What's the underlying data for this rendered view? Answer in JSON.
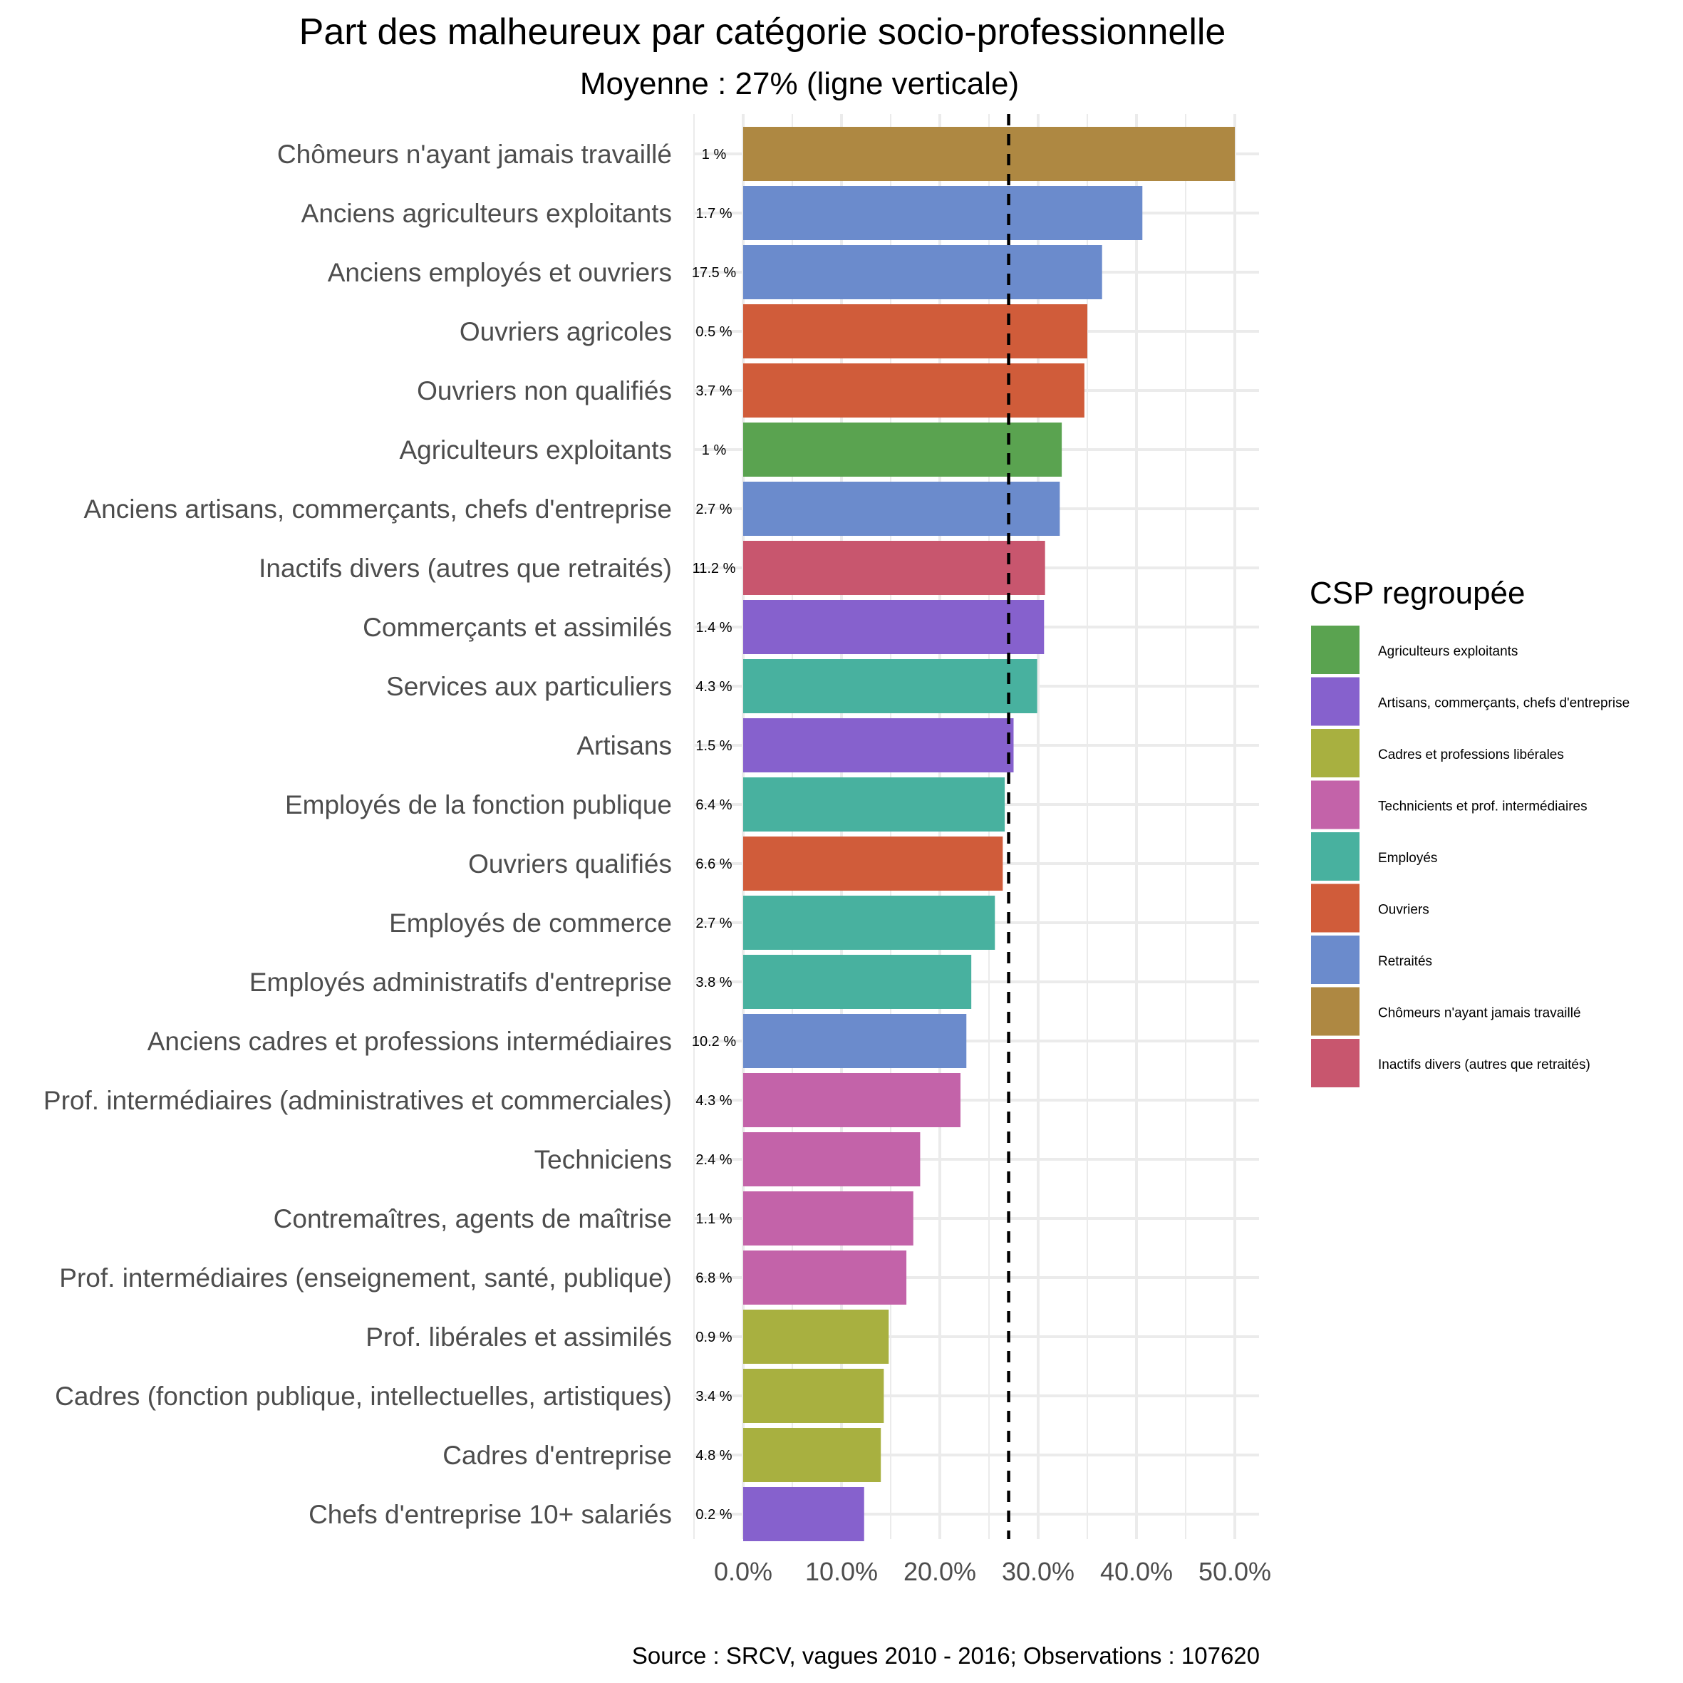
{
  "chart_data": {
    "type": "bar",
    "orientation": "horizontal",
    "title": "Part des malheureux par catégorie socio-professionnelle",
    "subtitle": "Moyenne : 27% (ligne verticale)",
    "caption": "Source : SRCV, vagues 2010 - 2016; Observations : 107620",
    "x_ticks": [
      "0.0%",
      "10.0%",
      "20.0%",
      "30.0%",
      "40.0%",
      "50.0%"
    ],
    "xlim": [
      0,
      50
    ],
    "mean": 27,
    "grid": true,
    "legend": {
      "title": "CSP regroupée",
      "position": "right",
      "items": [
        {
          "label": "Agriculteurs exploitants",
          "color": "#5aa350"
        },
        {
          "label": "Artisans, commerçants, chefs d'entreprise",
          "color": "#8661cd"
        },
        {
          "label": "Cadres et professions libérales",
          "color": "#a8b040"
        },
        {
          "label": "Technicients et prof. intermédiaires",
          "color": "#c363a9"
        },
        {
          "label": "Employés",
          "color": "#48b19f"
        },
        {
          "label": "Ouvriers",
          "color": "#d05c3a"
        },
        {
          "label": "Retraités",
          "color": "#6b8bcc"
        },
        {
          "label": "Chômeurs n'ayant jamais travaillé",
          "color": "#ae8842"
        },
        {
          "label": "Inactifs divers (autres que retraités)",
          "color": "#c8566e"
        }
      ]
    },
    "bars": [
      {
        "category": "Chômeurs n'ayant jamais travaillé",
        "value": 50.0,
        "share": "1 %",
        "group": 7
      },
      {
        "category": "Anciens agriculteurs exploitants",
        "value": 40.6,
        "share": "1.7 %",
        "group": 6
      },
      {
        "category": "Anciens employés et ouvriers",
        "value": 36.5,
        "share": "17.5 %",
        "group": 6
      },
      {
        "category": "Ouvriers agricoles",
        "value": 35.0,
        "share": "0.5 %",
        "group": 5
      },
      {
        "category": "Ouvriers non qualifiés",
        "value": 34.7,
        "share": "3.7 %",
        "group": 5
      },
      {
        "category": "Agriculteurs exploitants",
        "value": 32.4,
        "share": "1 %",
        "group": 0
      },
      {
        "category": "Anciens artisans, commerçants, chefs d'entreprise",
        "value": 32.2,
        "share": "2.7 %",
        "group": 6
      },
      {
        "category": "Inactifs divers (autres que retraités)",
        "value": 30.7,
        "share": "11.2 %",
        "group": 8
      },
      {
        "category": "Commerçants et assimilés",
        "value": 30.6,
        "share": "1.4 %",
        "group": 1
      },
      {
        "category": "Services aux particuliers",
        "value": 29.9,
        "share": "4.3 %",
        "group": 4
      },
      {
        "category": "Artisans",
        "value": 27.5,
        "share": "1.5 %",
        "group": 1
      },
      {
        "category": "Employés de la fonction publique",
        "value": 26.6,
        "share": "6.4 %",
        "group": 4
      },
      {
        "category": "Ouvriers qualifiés",
        "value": 26.4,
        "share": "6.6 %",
        "group": 5
      },
      {
        "category": "Employés de commerce",
        "value": 25.6,
        "share": "2.7 %",
        "group": 4
      },
      {
        "category": "Employés administratifs d'entreprise",
        "value": 23.2,
        "share": "3.8 %",
        "group": 4
      },
      {
        "category": "Anciens cadres et professions intermédiaires",
        "value": 22.7,
        "share": "10.2 %",
        "group": 6
      },
      {
        "category": "Prof. intermédiaires (administratives et commerciales)",
        "value": 22.1,
        "share": "4.3 %",
        "group": 3
      },
      {
        "category": "Techniciens",
        "value": 18.0,
        "share": "2.4 %",
        "group": 3
      },
      {
        "category": "Contremaîtres, agents de maîtrise",
        "value": 17.3,
        "share": "1.1 %",
        "group": 3
      },
      {
        "category": "Prof. intermédiaires (enseignement, santé, publique)",
        "value": 16.6,
        "share": "6.8 %",
        "group": 3
      },
      {
        "category": "Prof. libérales et assimilés",
        "value": 14.8,
        "share": "0.9 %",
        "group": 2
      },
      {
        "category": "Cadres (fonction publique, intellectuelles, artistiques)",
        "value": 14.3,
        "share": "3.4 %",
        "group": 2
      },
      {
        "category": "Cadres d'entreprise",
        "value": 14.0,
        "share": "4.8 %",
        "group": 2
      },
      {
        "category": "Chefs d'entreprise 10+ salariés",
        "value": 12.3,
        "share": "0.2 %",
        "group": 1
      }
    ]
  }
}
